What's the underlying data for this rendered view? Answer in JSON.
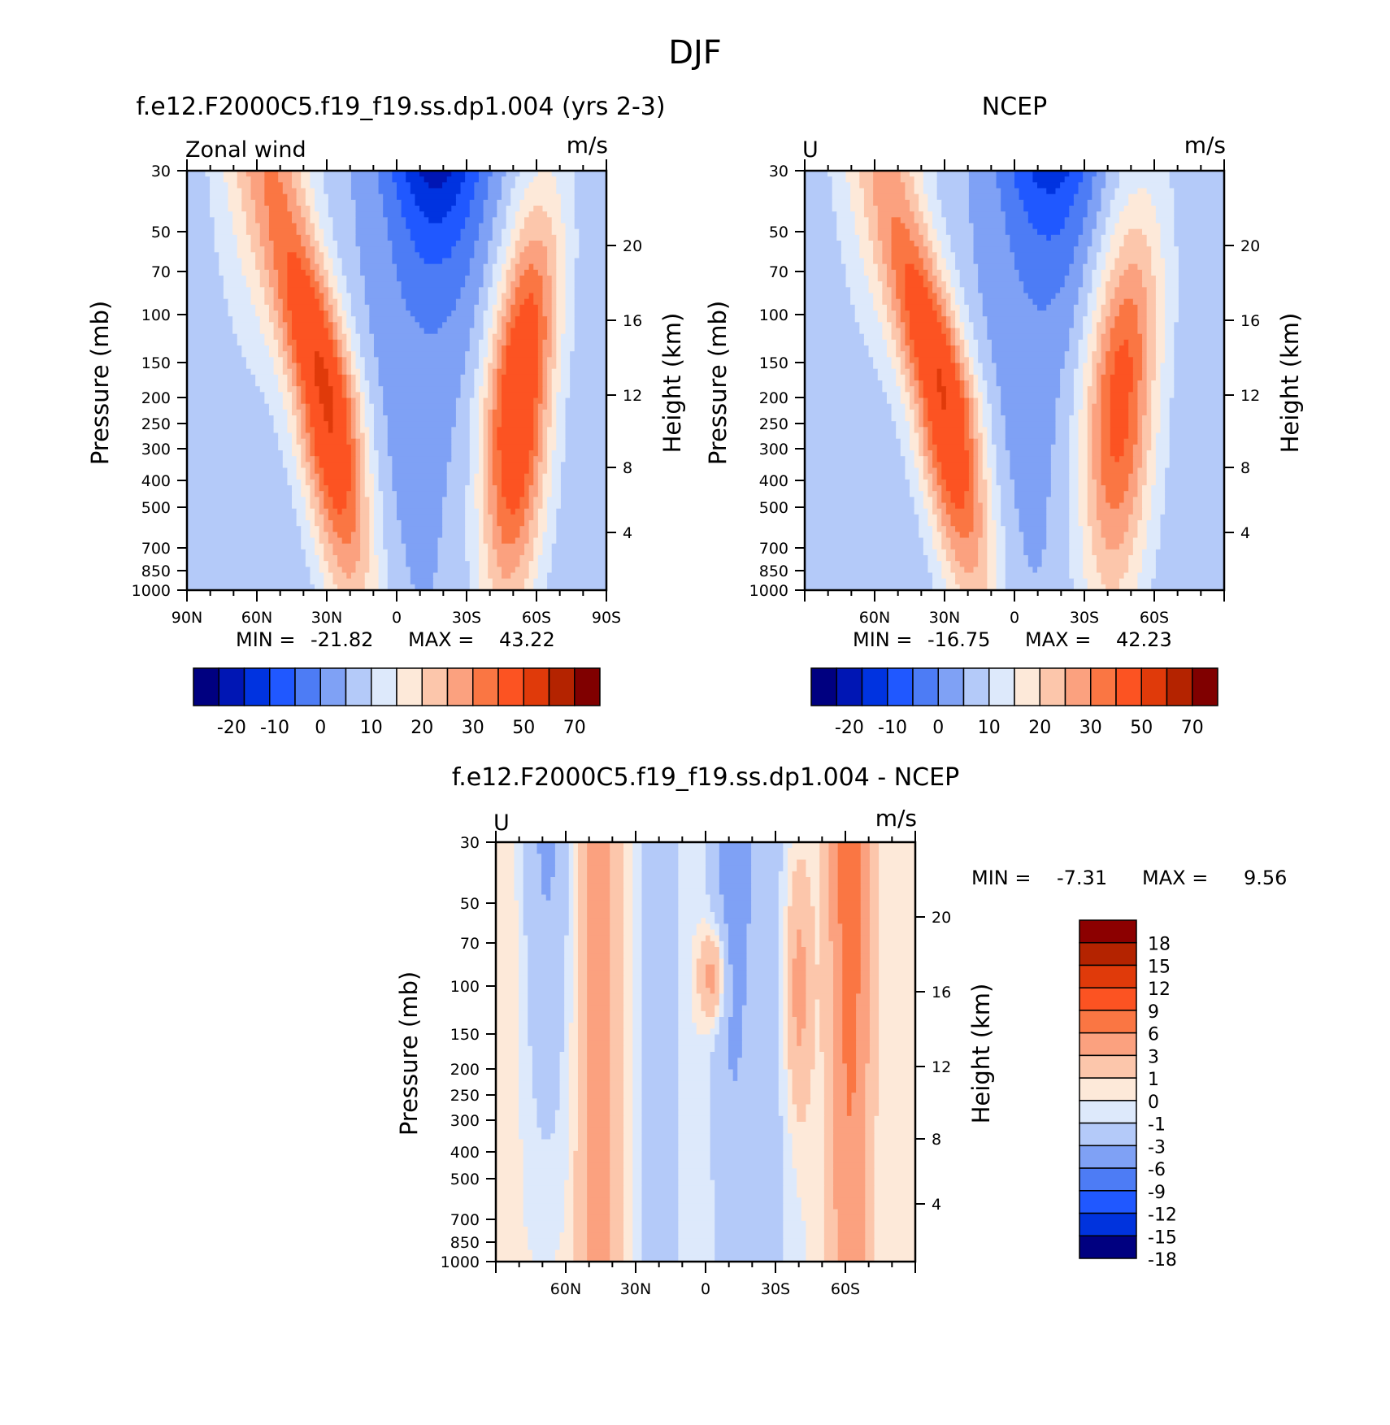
{
  "figure_title": "DJF",
  "colors": {
    "model": [
      "#000080",
      "#0016b4",
      "#0033e0",
      "#2058ff",
      "#4d7cf5",
      "#7fa1f5",
      "#b4caf9",
      "#dde9fb",
      "#fde9d9",
      "#fcc6ab",
      "#fba17f",
      "#fa7643",
      "#fc5322",
      "#e03a0a",
      "#b42300",
      "#800000"
    ],
    "diff": [
      "#000080",
      "#001aa8",
      "#0033dd",
      "#2058ff",
      "#4d7cf5",
      "#7fa1f5",
      "#b4caf9",
      "#dde9fb",
      "#fde9d9",
      "#fcc6ab",
      "#fba17f",
      "#fa7643",
      "#fc5322",
      "#e03a0a",
      "#b42300",
      "#8c0000"
    ]
  },
  "chart_data": [
    {
      "type": "heatmap",
      "id": "model",
      "title": "f.e12.F2000C5.f19_f19.ss.dp1.004 (yrs 2-3)",
      "left_label": "Zonal wind",
      "units": "m/s",
      "ylabel": "Pressure (mb)",
      "y2label": "Height (km)",
      "y_ticks": [
        "30",
        "50",
        "70",
        "100",
        "150",
        "200",
        "250",
        "300",
        "400",
        "500",
        "700",
        "850",
        "1000"
      ],
      "y2_ticks": [
        "20",
        "16",
        "12",
        "8",
        "4"
      ],
      "x_ticks": [
        "90N",
        "60N",
        "30N",
        "0",
        "30S",
        "60S",
        "90S"
      ],
      "min_label": "MIN =",
      "min_value": "-21.82",
      "max_label": "MAX =",
      "max_value": "43.22",
      "colorbar_labels": [
        "-20",
        "-10",
        "0",
        "10",
        "20",
        "30",
        "50",
        "70"
      ],
      "jets": [
        {
          "lat": 30,
          "p": 200,
          "peak": 43.22
        },
        {
          "lat": -52,
          "p": 200,
          "peak": 40
        }
      ],
      "easterly_min": {
        "lat": -17,
        "p": 30,
        "value": -21.82
      }
    },
    {
      "type": "heatmap",
      "id": "ncep",
      "title": "NCEP",
      "left_label": "U",
      "units": "m/s",
      "ylabel": "Pressure (mb)",
      "y2label": "Height (km)",
      "y_ticks": [
        "30",
        "50",
        "70",
        "100",
        "150",
        "200",
        "250",
        "300",
        "400",
        "500",
        "700",
        "850",
        "1000"
      ],
      "y2_ticks": [
        "20",
        "16",
        "12",
        "8",
        "4"
      ],
      "x_ticks": [
        "60N",
        "30N",
        "0",
        "30S",
        "60S"
      ],
      "min_label": "MIN =",
      "min_value": "-16.75",
      "max_label": "MAX =",
      "max_value": "42.23",
      "colorbar_labels": [
        "-20",
        "-10",
        "0",
        "10",
        "20",
        "30",
        "50",
        "70"
      ],
      "jets": [
        {
          "lat": 30,
          "p": 200,
          "peak": 42.23
        },
        {
          "lat": -45,
          "p": 200,
          "peak": 33
        }
      ],
      "easterly_min": {
        "lat": -15,
        "p": 30,
        "value": -16.75
      }
    },
    {
      "type": "heatmap",
      "id": "diff",
      "title": "f.e12.F2000C5.f19_f19.ss.dp1.004 - NCEP",
      "left_label": "U",
      "units": "m/s",
      "ylabel": "Pressure (mb)",
      "y2label": "Height (km)",
      "y_ticks": [
        "30",
        "50",
        "70",
        "100",
        "150",
        "200",
        "250",
        "300",
        "400",
        "500",
        "700",
        "850",
        "1000"
      ],
      "y2_ticks": [
        "20",
        "16",
        "12",
        "8",
        "4"
      ],
      "x_ticks": [
        "60N",
        "30N",
        "0",
        "30S",
        "60S"
      ],
      "min_label": "MIN =",
      "min_value": "-7.31",
      "max_label": "MAX =",
      "max_value": "9.56",
      "colorbar_labels": [
        "18",
        "15",
        "12",
        "9",
        "6",
        "3",
        "1",
        "0",
        "-1",
        "-3",
        "-6",
        "-9",
        "-12",
        "-15",
        "-18"
      ]
    }
  ]
}
